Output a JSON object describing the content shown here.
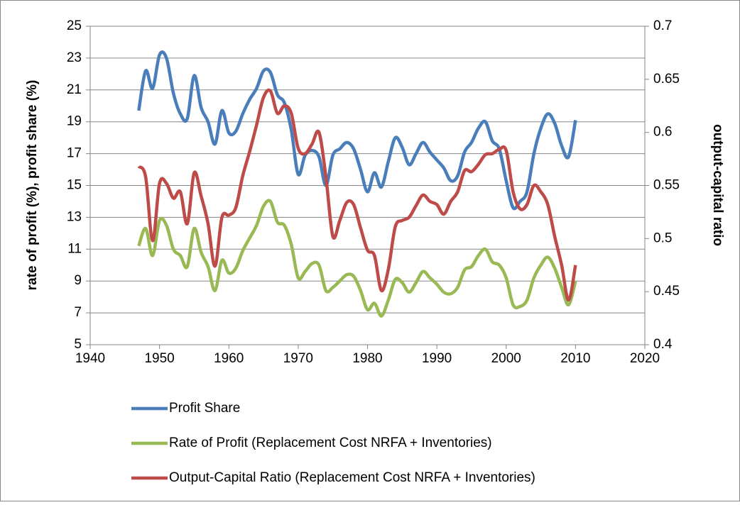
{
  "chart_data": {
    "type": "line",
    "y_label": "rate of profit (%), profit share (%)",
    "y2_label": "output-capital ratio",
    "x": [
      1947,
      1948,
      1949,
      1950,
      1951,
      1952,
      1953,
      1954,
      1955,
      1956,
      1957,
      1958,
      1959,
      1960,
      1961,
      1962,
      1963,
      1964,
      1965,
      1966,
      1967,
      1968,
      1969,
      1970,
      1971,
      1972,
      1973,
      1974,
      1975,
      1976,
      1977,
      1978,
      1979,
      1980,
      1981,
      1982,
      1983,
      1984,
      1985,
      1986,
      1987,
      1988,
      1989,
      1990,
      1991,
      1992,
      1993,
      1994,
      1995,
      1996,
      1997,
      1998,
      1999,
      2000,
      2001,
      2002,
      2003,
      2004,
      2005,
      2006,
      2007,
      2008,
      2009,
      2010
    ],
    "series": [
      {
        "name": "Profit Share",
        "color": "#4a7ebb",
        "values": [
          19.7,
          22.2,
          21.1,
          23.2,
          23.0,
          20.8,
          19.5,
          19.2,
          21.9,
          19.9,
          19.0,
          17.6,
          19.7,
          18.3,
          18.4,
          19.5,
          20.4,
          21.1,
          22.2,
          22.1,
          20.7,
          20.2,
          18.5,
          15.7,
          16.9,
          17.2,
          16.8,
          15.0,
          16.9,
          17.3,
          17.7,
          17.3,
          16.0,
          14.6,
          15.8,
          14.9,
          16.5,
          18.0,
          17.4,
          16.3,
          17.0,
          17.7,
          17.1,
          16.6,
          16.1,
          15.3,
          15.6,
          17.1,
          17.7,
          18.6,
          19.0,
          17.8,
          17.3,
          15.3,
          13.6,
          14.0,
          14.6,
          17.0,
          18.6,
          19.5,
          18.9,
          17.5,
          16.8,
          19.1
        ]
      },
      {
        "name": "Rate of Profit (Replacement Cost NRFA + Inventories)",
        "color": "#98b954",
        "values": [
          11.2,
          12.3,
          10.6,
          12.8,
          12.5,
          11.0,
          10.6,
          9.9,
          12.3,
          10.8,
          9.9,
          8.4,
          10.3,
          9.5,
          9.8,
          10.9,
          11.7,
          12.5,
          13.7,
          14.0,
          12.7,
          12.5,
          11.3,
          9.2,
          9.6,
          10.1,
          10.0,
          8.4,
          8.6,
          9.0,
          9.4,
          9.3,
          8.4,
          7.2,
          7.6,
          6.8,
          7.8,
          9.1,
          8.9,
          8.3,
          8.9,
          9.6,
          9.2,
          8.8,
          8.3,
          8.2,
          8.6,
          9.7,
          9.9,
          10.6,
          11.0,
          10.2,
          10.0,
          9.2,
          7.5,
          7.4,
          7.8,
          9.2,
          10.0,
          10.5,
          9.8,
          8.6,
          7.5,
          9.0
        ]
      },
      {
        "name": "Output-Capital Ratio (Replacement Cost NRFA + Inventories)",
        "color": "#be4b48",
        "axis": "y2",
        "values": [
          0.568,
          0.558,
          0.498,
          0.552,
          0.552,
          0.538,
          0.544,
          0.514,
          0.562,
          0.54,
          0.514,
          0.474,
          0.52,
          0.522,
          0.529,
          0.559,
          0.582,
          0.607,
          0.633,
          0.639,
          0.618,
          0.625,
          0.618,
          0.585,
          0.58,
          0.589,
          0.6,
          0.558,
          0.502,
          0.517,
          0.534,
          0.532,
          0.51,
          0.489,
          0.484,
          0.451,
          0.471,
          0.511,
          0.517,
          0.52,
          0.531,
          0.541,
          0.535,
          0.532,
          0.523,
          0.535,
          0.544,
          0.564,
          0.563,
          0.57,
          0.579,
          0.58,
          0.584,
          0.583,
          0.544,
          0.528,
          0.532,
          0.55,
          0.544,
          0.532,
          0.502,
          0.475,
          0.442,
          0.475
        ]
      }
    ],
    "xlim": [
      1940,
      2020
    ],
    "xticks": [
      1940,
      1950,
      1960,
      1970,
      1980,
      1990,
      2000,
      2010,
      2020
    ],
    "ylim": [
      5,
      25
    ],
    "yticks": [
      5,
      7,
      9,
      11,
      13,
      15,
      17,
      19,
      21,
      23,
      25
    ],
    "y2lim": [
      0.4,
      0.7
    ],
    "y2ticks": [
      0.4,
      0.45,
      0.5,
      0.55,
      0.6,
      0.65,
      0.7
    ],
    "grid": true,
    "legend": "bottom"
  }
}
